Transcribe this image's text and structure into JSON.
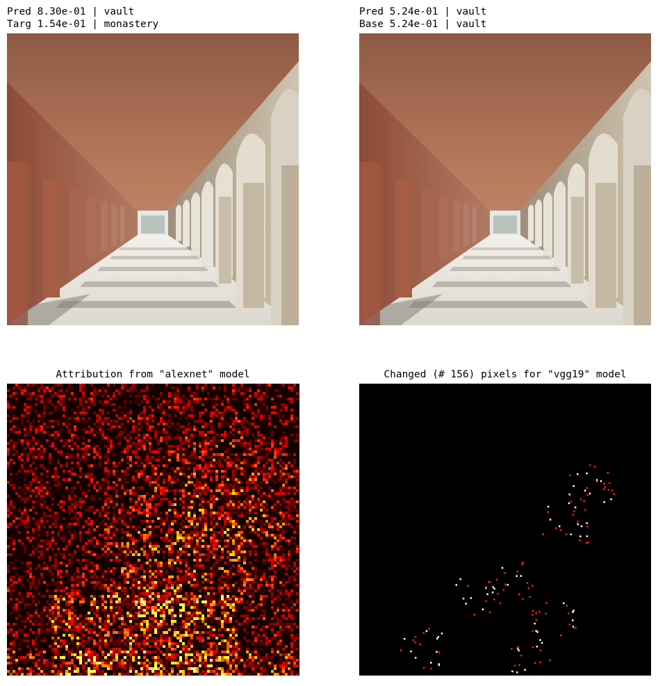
{
  "panels": [
    {
      "title_lines": [
        "Pred 8.30e-01 | vault",
        "Targ 1.54e-01 | monastery"
      ]
    },
    {
      "title_lines": [
        "Pred 5.24e-01 | vault",
        "Base 5.24e-01 | vault"
      ]
    },
    {
      "title": "Attribution from \"alexnet\" model"
    },
    {
      "title": "Changed (# 156) pixels for \"vgg19\" model"
    }
  ]
}
